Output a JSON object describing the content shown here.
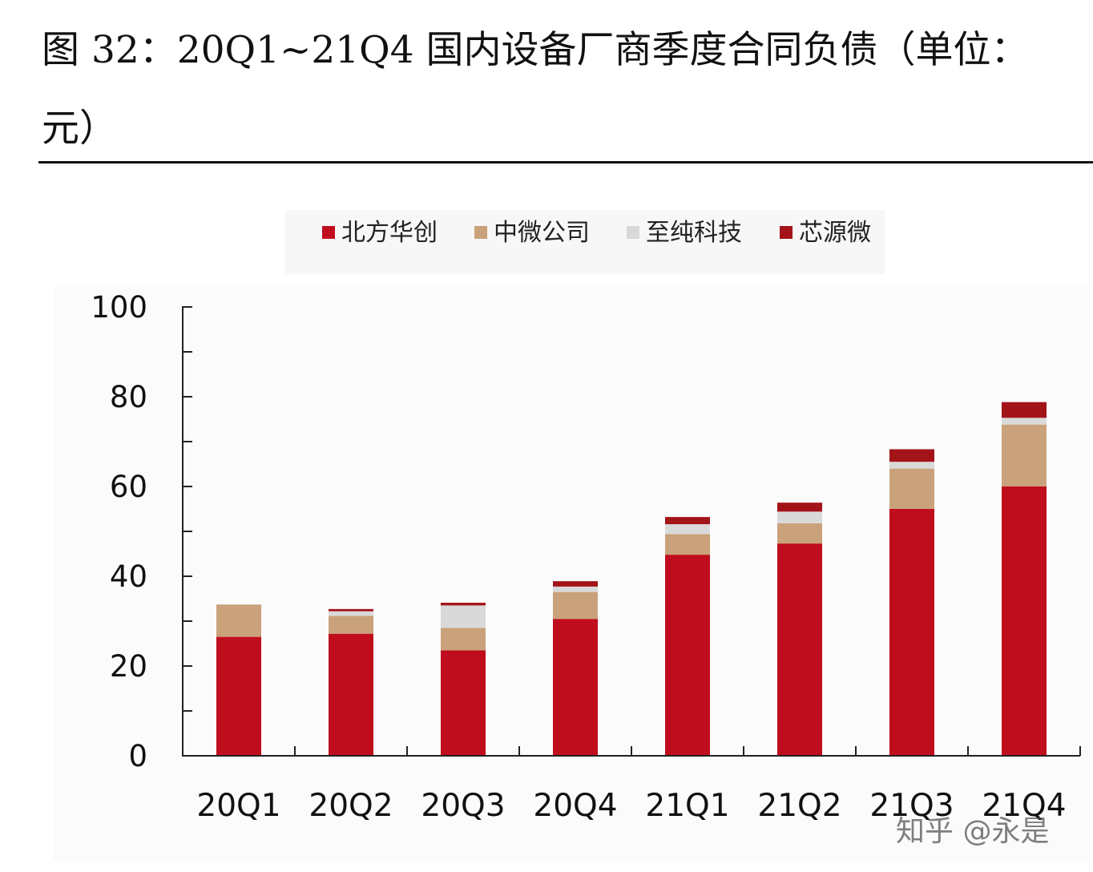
{
  "title": "图 32：20Q1~21Q4 国内设备厂商季度合同负债（单位：元）",
  "watermark": "知乎 @永是",
  "chart_data": {
    "type": "bar",
    "stacked": true,
    "categories": [
      "20Q1",
      "20Q2",
      "20Q3",
      "20Q4",
      "21Q1",
      "21Q2",
      "21Q3",
      "21Q4"
    ],
    "series": [
      {
        "name": "北方华创",
        "color": "#c00d1e",
        "values": [
          26.5,
          27.2,
          23.5,
          30.5,
          44.8,
          47.3,
          55.0,
          60.0
        ]
      },
      {
        "name": "中微公司",
        "color": "#c9a27b",
        "values": [
          7.2,
          4.0,
          5.0,
          6.0,
          4.6,
          4.5,
          9.0,
          13.8
        ]
      },
      {
        "name": "至纯科技",
        "color": "#d9d9d9",
        "values": [
          0,
          1.0,
          5.0,
          1.2,
          2.2,
          2.6,
          1.5,
          1.5
        ]
      },
      {
        "name": "芯源微",
        "color": "#a31419",
        "values": [
          0,
          0.5,
          0.6,
          1.2,
          1.6,
          2.0,
          2.8,
          3.5
        ]
      }
    ],
    "ylim": [
      0,
      100
    ],
    "yticks": [
      0,
      20,
      40,
      60,
      80,
      100
    ],
    "grid": false,
    "legend": "top"
  }
}
